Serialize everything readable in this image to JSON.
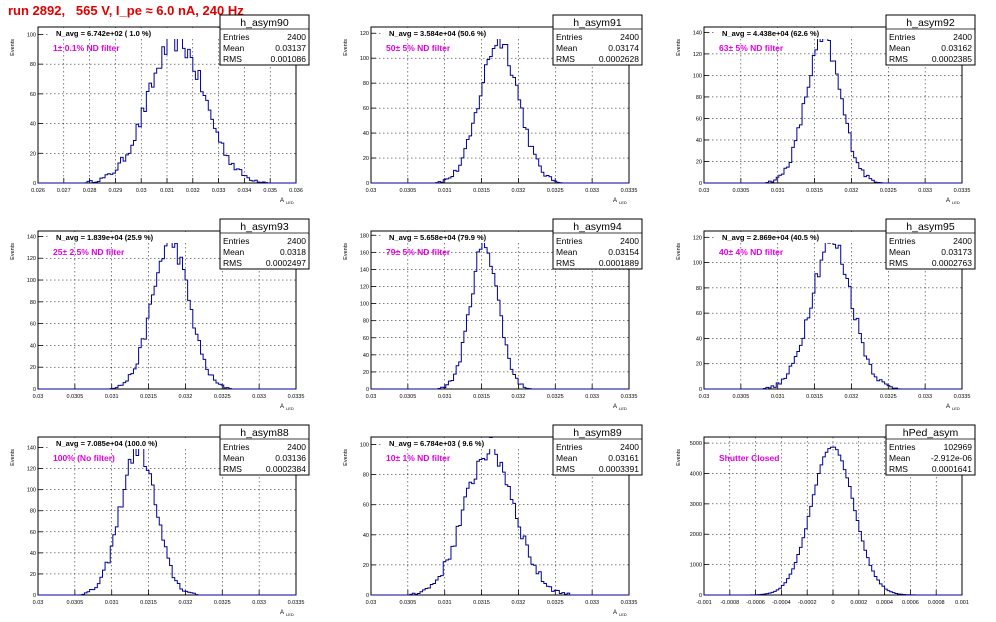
{
  "run_title": "run 2892,   565 V, I_pe ≈ 6.0 nA, 240 Hz",
  "colors": {
    "hist": "#000099",
    "note": "#e000e0",
    "title": "#e00000",
    "grid": "#000000"
  },
  "chart_data": [
    {
      "type": "histogram",
      "name": "h_asym90",
      "navg": "N_avg = 6.742e+02 ( 1.0 %)",
      "note": "1± 0.1% ND filter",
      "stats": [
        [
          "Entries",
          "2400"
        ],
        [
          "Mean",
          "0.03137"
        ],
        [
          "RMS",
          "0.001086"
        ]
      ],
      "ylabel": "Events",
      "xlabel": "A",
      "xsub": "LED",
      "xlim": [
        0.026,
        0.036
      ],
      "ylim": [
        0,
        105
      ],
      "xticks": [
        "0.026",
        "0.027",
        "0.028",
        "0.029",
        "0.03",
        "0.031",
        "0.032",
        "0.033",
        "0.034",
        "0.035",
        "0.036"
      ],
      "yticks": [
        "0",
        "20",
        "40",
        "60",
        "80",
        "100"
      ],
      "ytick_values": [
        0,
        20,
        40,
        60,
        80,
        100
      ],
      "mean": 0.03137,
      "sigma": 0.001086,
      "peak": 96
    },
    {
      "type": "histogram",
      "name": "h_asym91",
      "navg": "N_avg = 3.584e+04 (50.6 %)",
      "note": "50± 5% ND filter",
      "stats": [
        [
          "Entries",
          "2400"
        ],
        [
          "Mean",
          "0.03174"
        ],
        [
          "RMS",
          "0.0002628"
        ]
      ],
      "ylabel": "Events",
      "xlabel": "A",
      "xsub": "LED",
      "xlim": [
        0.03,
        0.0335
      ],
      "ylim": [
        0,
        125
      ],
      "xticks": [
        "0.03",
        "0.0305",
        "0.031",
        "0.0315",
        "0.032",
        "0.0325",
        "0.033",
        "0.0335"
      ],
      "yticks": [
        "0",
        "20",
        "40",
        "60",
        "80",
        "100",
        "120"
      ],
      "ytick_values": [
        0,
        20,
        40,
        60,
        80,
        100,
        120
      ],
      "mean": 0.03174,
      "sigma": 0.0002628,
      "peak": 115
    },
    {
      "type": "histogram",
      "name": "h_asym92",
      "navg": "N_avg = 4.438e+04 (62.6 %)",
      "note": "63± 5% ND filter",
      "stats": [
        [
          "Entries",
          "2400"
        ],
        [
          "Mean",
          "0.03162"
        ],
        [
          "RMS",
          "0.0002385"
        ]
      ],
      "ylabel": "Events",
      "xlabel": "A",
      "xsub": "LED",
      "xlim": [
        0.03,
        0.0335
      ],
      "ylim": [
        0,
        145
      ],
      "xticks": [
        "0.03",
        "0.0305",
        "0.031",
        "0.0315",
        "0.032",
        "0.0325",
        "0.033",
        "0.0335"
      ],
      "yticks": [
        "0",
        "20",
        "40",
        "60",
        "80",
        "100",
        "120",
        "140"
      ],
      "ytick_values": [
        0,
        20,
        40,
        60,
        80,
        100,
        120,
        140
      ],
      "mean": 0.03162,
      "sigma": 0.0002385,
      "peak": 132
    },
    {
      "type": "histogram",
      "name": "h_asym93",
      "navg": "N_avg = 1.839e+04 (25.9 %)",
      "note": "25± 2.5% ND filter",
      "stats": [
        [
          "Entries",
          "2400"
        ],
        [
          "Mean",
          "0.0318"
        ],
        [
          "RMS",
          "0.0002497"
        ]
      ],
      "ylabel": "Events",
      "xlabel": "A",
      "xsub": "LED",
      "xlim": [
        0.03,
        0.0335
      ],
      "ylim": [
        0,
        145
      ],
      "xticks": [
        "0.03",
        "0.0305",
        "0.031",
        "0.0315",
        "0.032",
        "0.0325",
        "0.033",
        "0.0335"
      ],
      "yticks": [
        "0",
        "20",
        "40",
        "60",
        "80",
        "100",
        "120",
        "140"
      ],
      "ytick_values": [
        0,
        20,
        40,
        60,
        80,
        100,
        120,
        140
      ],
      "mean": 0.0318,
      "sigma": 0.0002497,
      "peak": 135
    },
    {
      "type": "histogram",
      "name": "h_asym94",
      "navg": "N_avg = 5.658e+04 (79.9 %)",
      "note": "79± 5% ND filter",
      "stats": [
        [
          "Entries",
          "2400"
        ],
        [
          "Mean",
          "0.03154"
        ],
        [
          "RMS",
          "0.0001889"
        ]
      ],
      "ylabel": "Events",
      "xlabel": "A",
      "xsub": "LED",
      "xlim": [
        0.03,
        0.0335
      ],
      "ylim": [
        0,
        185
      ],
      "xticks": [
        "0.03",
        "0.0305",
        "0.031",
        "0.0315",
        "0.032",
        "0.0325",
        "0.033",
        "0.0335"
      ],
      "yticks": [
        "0",
        "20",
        "40",
        "60",
        "80",
        "100",
        "120",
        "140",
        "160",
        "180"
      ],
      "ytick_values": [
        0,
        20,
        40,
        60,
        80,
        100,
        120,
        140,
        160,
        180
      ],
      "mean": 0.03154,
      "sigma": 0.0001889,
      "peak": 170
    },
    {
      "type": "histogram",
      "name": "h_asym95",
      "navg": "N_avg = 2.869e+04 (40.5 %)",
      "note": "40± 4% ND filter",
      "stats": [
        [
          "Entries",
          "2400"
        ],
        [
          "Mean",
          "0.03173"
        ],
        [
          "RMS",
          "0.0002763"
        ]
      ],
      "ylabel": "Events",
      "xlabel": "A",
      "xsub": "LED",
      "xlim": [
        0.03,
        0.0335
      ],
      "ylim": [
        0,
        125
      ],
      "xticks": [
        "0.03",
        "0.0305",
        "0.031",
        "0.0315",
        "0.032",
        "0.0325",
        "0.033",
        "0.0335"
      ],
      "yticks": [
        "0",
        "20",
        "40",
        "60",
        "80",
        "100",
        "120"
      ],
      "ytick_values": [
        0,
        20,
        40,
        60,
        80,
        100,
        120
      ],
      "mean": 0.03173,
      "sigma": 0.0002763,
      "peak": 117
    },
    {
      "type": "histogram",
      "name": "h_asym88",
      "navg": "N_avg = 7.085e+04 (100.0 %)",
      "note": "100% (No filter)",
      "stats": [
        [
          "Entries",
          "2400"
        ],
        [
          "Mean",
          "0.03136"
        ],
        [
          "RMS",
          "0.0002384"
        ]
      ],
      "ylabel": "Events",
      "xlabel": "A",
      "xsub": "LED",
      "xlim": [
        0.03,
        0.0335
      ],
      "ylim": [
        0,
        150
      ],
      "xticks": [
        "0.03",
        "0.0305",
        "0.031",
        "0.0315",
        "0.032",
        "0.0325",
        "0.033",
        "0.0335"
      ],
      "yticks": [
        "0",
        "20",
        "40",
        "60",
        "80",
        "100",
        "120",
        "140"
      ],
      "ytick_values": [
        0,
        20,
        40,
        60,
        80,
        100,
        120,
        140
      ],
      "mean": 0.03136,
      "sigma": 0.0002384,
      "peak": 140
    },
    {
      "type": "histogram",
      "name": "h_asym89",
      "navg": "N_avg = 6.784e+03 ( 9.6 %)",
      "note": "10± 1% ND filter",
      "stats": [
        [
          "Entries",
          "2400"
        ],
        [
          "Mean",
          "0.03161"
        ],
        [
          "RMS",
          "0.0003391"
        ]
      ],
      "ylabel": "Events",
      "xlabel": "A",
      "xsub": "LED",
      "xlim": [
        0.03,
        0.0335
      ],
      "ylim": [
        0,
        105
      ],
      "xticks": [
        "0.03",
        "0.0305",
        "0.031",
        "0.0315",
        "0.032",
        "0.0325",
        "0.033",
        "0.0335"
      ],
      "yticks": [
        "0",
        "20",
        "40",
        "60",
        "80",
        "100"
      ],
      "ytick_values": [
        0,
        20,
        40,
        60,
        80,
        100
      ],
      "mean": 0.03161,
      "sigma": 0.0003391,
      "peak": 97
    },
    {
      "type": "histogram",
      "name": "hPed_asym",
      "navg": "",
      "note": "Shutter Closed",
      "stats": [
        [
          "Entries",
          "102969"
        ],
        [
          "Mean",
          "-2.912e-06"
        ],
        [
          "RMS",
          "0.0001641"
        ]
      ],
      "ylabel": "Events",
      "xlabel": "",
      "xsub": "",
      "xlim": [
        -0.001,
        0.001
      ],
      "ylim": [
        0,
        5200
      ],
      "xticks": [
        "-0.001",
        "-0.0008",
        "-0.0006",
        "-0.0004",
        "-0.0002",
        "0",
        "0.0002",
        "0.0004",
        "0.0006",
        "0.0008",
        "0.001"
      ],
      "yticks": [
        "0",
        "1000",
        "2000",
        "3000",
        "4000",
        "5000"
      ],
      "ytick_values": [
        0,
        1000,
        2000,
        3000,
        4000,
        5000
      ],
      "mean": -3e-06,
      "sigma": 0.0001641,
      "peak": 4900
    }
  ]
}
